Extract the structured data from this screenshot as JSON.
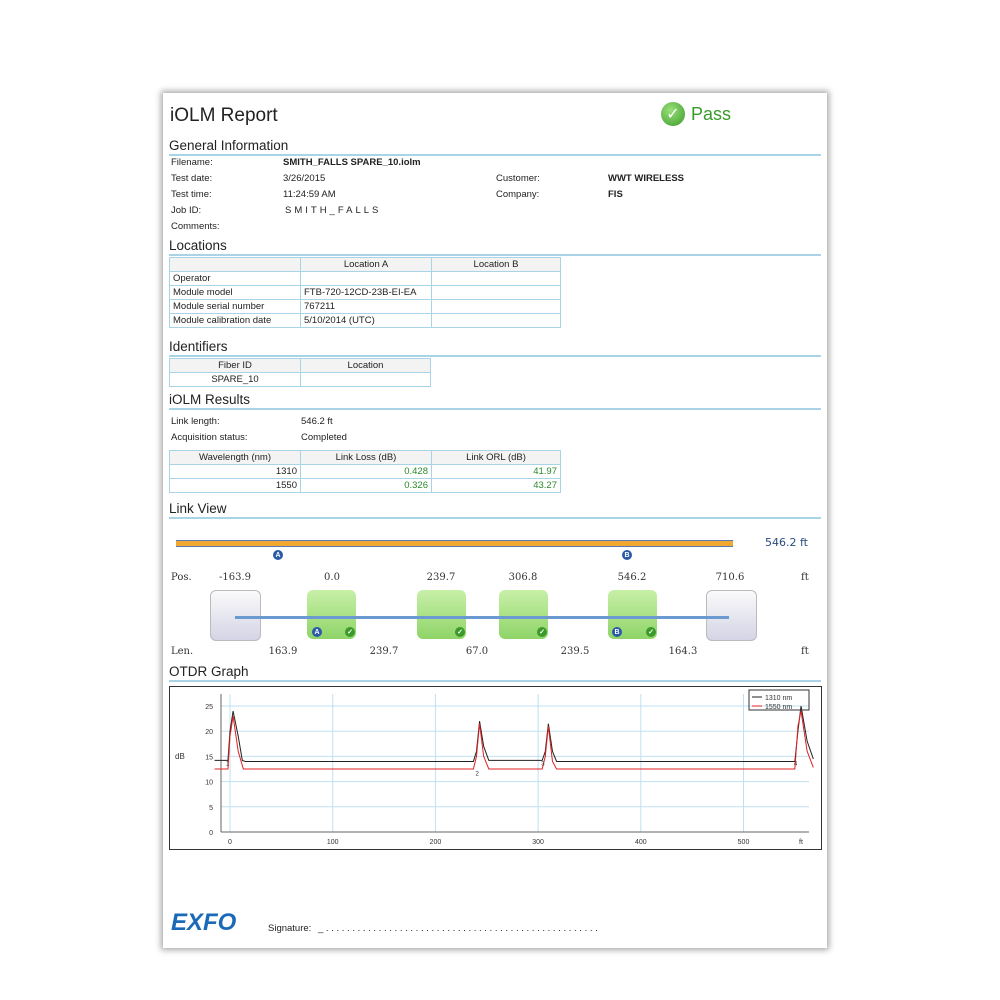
{
  "header": {
    "title": "iOLM Report",
    "status": "Pass",
    "status_icon": "check-circle-icon"
  },
  "general": {
    "heading": "General Information",
    "filename_label": "Filename:",
    "filename": "SMITH_FALLS SPARE_10.iolm",
    "test_date_label": "Test date:",
    "test_date": "3/26/2015",
    "test_time_label": "Test time:",
    "test_time": "11:24:59 AM",
    "job_id_label": "Job ID:",
    "job_id": "SMITH_FALLS",
    "comments_label": "Comments:",
    "customer_label": "Customer:",
    "customer": "WWT WIRELESS",
    "company_label": "Company:",
    "company": "FIS"
  },
  "locations": {
    "heading": "Locations",
    "columns": [
      "",
      "Location A",
      "Location B"
    ],
    "rows": [
      [
        "Operator",
        "",
        ""
      ],
      [
        "Module model",
        "FTB-720-12CD-23B-EI-EA",
        ""
      ],
      [
        "Module serial number",
        "767211",
        ""
      ],
      [
        "Module calibration date",
        "5/10/2014 (UTC)",
        ""
      ]
    ]
  },
  "identifiers": {
    "heading": "Identifiers",
    "columns": [
      "Fiber ID",
      "Location"
    ],
    "rows": [
      [
        "SPARE_10",
        ""
      ]
    ]
  },
  "results": {
    "heading": "iOLM Results",
    "link_length_label": "Link length:",
    "link_length": "546.2 ft",
    "acq_label": "Acquisition status:",
    "acq": "Completed",
    "columns": [
      "Wavelength (nm)",
      "Link Loss (dB)",
      "Link ORL (dB)"
    ],
    "rows": [
      [
        "1310",
        "0.428",
        "41.97"
      ],
      [
        "1550",
        "0.326",
        "43.27"
      ]
    ]
  },
  "link_view": {
    "heading": "Link View",
    "total": "546.2 ft",
    "marker_a": "A",
    "marker_b": "B",
    "pos_label": "Pos.",
    "len_label": "Len.",
    "unit": "ft",
    "positions": [
      "-163.9",
      "0.0",
      "239.7",
      "306.8",
      "546.2",
      "710.6"
    ],
    "lengths": [
      "163.9",
      "239.7",
      "67.0",
      "239.5",
      "164.3"
    ]
  },
  "otdr": {
    "heading": "OTDR Graph"
  },
  "chart_data": {
    "type": "line",
    "ylabel": "dB",
    "xunit": "ft",
    "xlim": [
      -15,
      575
    ],
    "ylim": [
      0,
      28
    ],
    "xticks": [
      0,
      100,
      200,
      300,
      400,
      500
    ],
    "yticks": [
      0,
      5,
      10,
      15,
      20,
      25
    ],
    "grid": true,
    "legend": "top-right",
    "event_labels": [
      "1",
      "2",
      "3",
      "4"
    ],
    "series": [
      {
        "name": "1310 nm",
        "color": "#222222",
        "points": [
          [
            -15,
            14.2
          ],
          [
            -2,
            14.2
          ],
          [
            0,
            20
          ],
          [
            3,
            24
          ],
          [
            8,
            19
          ],
          [
            12,
            14.2
          ],
          [
            15,
            14
          ],
          [
            237,
            14
          ],
          [
            240,
            16
          ],
          [
            243,
            22
          ],
          [
            247,
            17
          ],
          [
            252,
            14.2
          ],
          [
            304,
            14.2
          ],
          [
            307,
            16
          ],
          [
            310,
            21.5
          ],
          [
            314,
            16
          ],
          [
            318,
            14
          ],
          [
            550,
            14
          ],
          [
            553,
            20
          ],
          [
            556,
            25
          ],
          [
            562,
            18
          ],
          [
            568,
            14.5
          ]
        ]
      },
      {
        "name": "1550 nm",
        "color": "#e02020",
        "points": [
          [
            -15,
            12.5
          ],
          [
            -2,
            12.5
          ],
          [
            0,
            19
          ],
          [
            3,
            23
          ],
          [
            8,
            16
          ],
          [
            13,
            12.5
          ],
          [
            237,
            12.5
          ],
          [
            240,
            15
          ],
          [
            243,
            21.5
          ],
          [
            247,
            15
          ],
          [
            252,
            12.5
          ],
          [
            304,
            12.5
          ],
          [
            307,
            15
          ],
          [
            310,
            21
          ],
          [
            314,
            14
          ],
          [
            318,
            12.5
          ],
          [
            550,
            12.5
          ],
          [
            553,
            21
          ],
          [
            556,
            24
          ],
          [
            562,
            16
          ],
          [
            568,
            12.8
          ]
        ]
      }
    ]
  },
  "footer": {
    "logo": "EXFO",
    "signature_label": "Signature:",
    "signature_line": "_ . . . . . . . . . . . . . . . . . . . . . . . . . . . . . . . . . . . . . . . . . . . . . . . . . . . ."
  }
}
